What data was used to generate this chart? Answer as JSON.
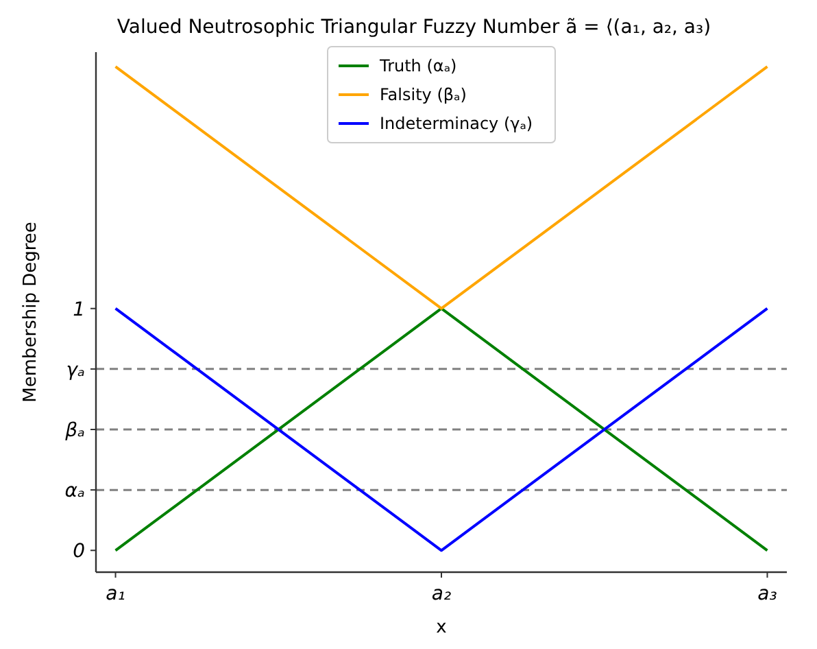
{
  "chart_data": {
    "type": "line",
    "title": "Valued Neutrosophic Triangular Fuzzy Number ã = ⟨(a₁, a₂, a₃)",
    "xlabel": "x",
    "ylabel": "Membership Degree",
    "categories": [
      "a₁",
      "a₂",
      "a₃"
    ],
    "series": [
      {
        "name": "Truth (αₐ)",
        "color": "#008000",
        "values": [
          0,
          1,
          0
        ]
      },
      {
        "name": "Falsity (βₐ)",
        "color": "#ffa500",
        "values": [
          2,
          1,
          2
        ]
      },
      {
        "name": "Indeterminacy (γₐ)",
        "color": "#0000ff",
        "values": [
          1,
          0,
          1
        ]
      }
    ],
    "ylim": [
      -0.09,
      2.06
    ],
    "yticks": [
      0,
      {
        "value": 0.25,
        "label": "αₐ"
      },
      {
        "value": 0.5,
        "label": "βₐ"
      },
      {
        "value": 0.75,
        "label": "γₐ"
      },
      1
    ],
    "ref_lines": [
      {
        "axis": "y",
        "value": 0.25,
        "color": "#808080",
        "line_style": "dashed"
      },
      {
        "axis": "y",
        "value": 0.5,
        "color": "#808080",
        "line_style": "dashed"
      },
      {
        "axis": "y",
        "value": 0.75,
        "color": "#808080",
        "line_style": "dashed"
      }
    ],
    "legend": "top",
    "grid": false,
    "marker": "none",
    "line_style": "solid"
  }
}
